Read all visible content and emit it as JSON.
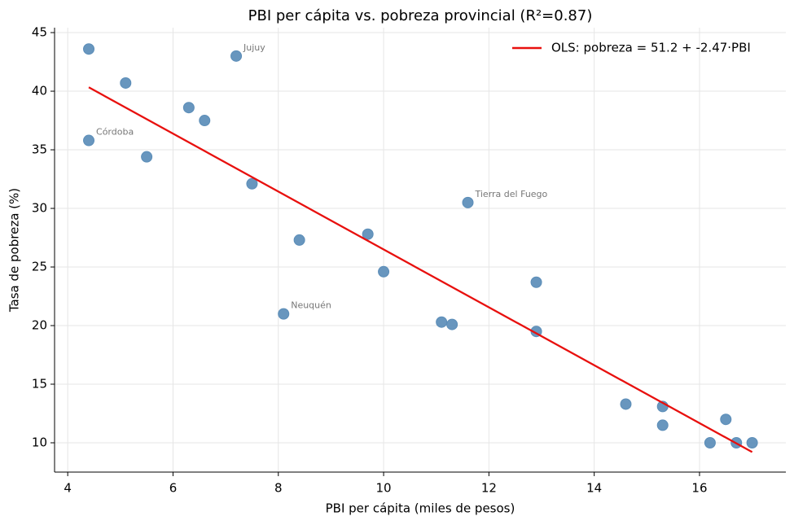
{
  "chart_data": {
    "type": "scatter",
    "title": "PBI per cápita vs. pobreza provincial (R²=0.87)",
    "xlabel": "PBI per cápita (miles de pesos)",
    "ylabel": "Tasa de pobreza (%)",
    "xlim": [
      3.75,
      17.64
    ],
    "ylim": [
      7.5,
      45.42
    ],
    "xticks": [
      4,
      6,
      8,
      10,
      12,
      14,
      16
    ],
    "yticks": [
      10,
      15,
      20,
      25,
      30,
      35,
      40,
      45
    ],
    "grid": true,
    "legend": "upper right",
    "points": {
      "color": "#5b8db8",
      "x": [
        4.4,
        5.1,
        7.2,
        6.3,
        6.6,
        4.4,
        5.5,
        7.5,
        11.6,
        8.4,
        9.7,
        10.0,
        8.1,
        11.1,
        11.3,
        12.9,
        12.9,
        14.6,
        15.3,
        15.3,
        16.5,
        16.2,
        16.7,
        17.0
      ],
      "y": [
        43.6,
        40.7,
        43.0,
        38.6,
        37.5,
        35.8,
        34.4,
        32.1,
        30.5,
        27.3,
        27.8,
        24.6,
        21.0,
        20.3,
        20.1,
        23.7,
        19.5,
        13.3,
        13.1,
        11.5,
        12.0,
        10.0,
        10.0,
        10.0
      ]
    },
    "fit": {
      "name": "OLS: pobreza = 51.2 + -2.47·PBI",
      "color": "#e8100e",
      "x": [
        4.4,
        17.0
      ],
      "y": [
        40.33,
        9.21
      ]
    },
    "annotations": [
      {
        "text": "Jujuy",
        "x": 7.2,
        "y": 43.0
      },
      {
        "text": "Córdoba",
        "x": 4.4,
        "y": 35.8
      },
      {
        "text": "Tierra del Fuego",
        "x": 11.6,
        "y": 30.5
      },
      {
        "text": "Neuquén",
        "x": 8.1,
        "y": 21.0
      }
    ]
  }
}
